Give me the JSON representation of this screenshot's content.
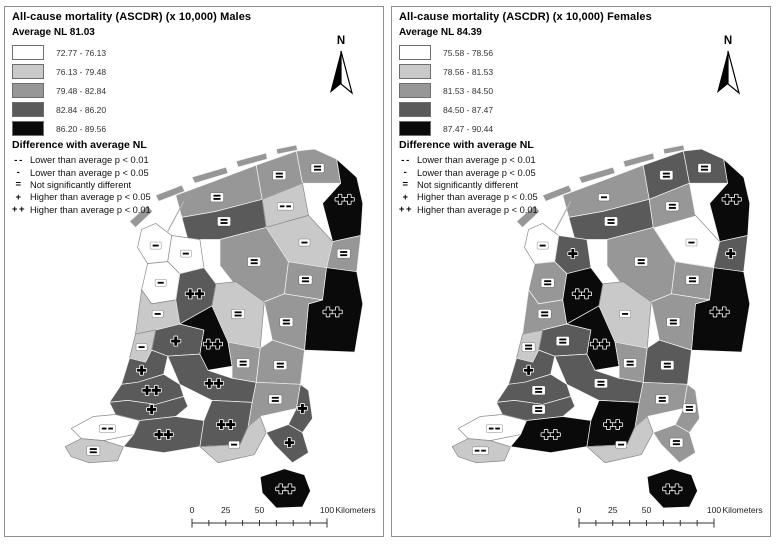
{
  "colors": {
    "c1": "#ffffff",
    "c2": "#c9c9c9",
    "c3": "#979797",
    "c4": "#5a5a5a",
    "c5": "#0a0a0a",
    "panel_border": "#8f8f8f",
    "border_light": "#8a8a8a",
    "border_dark": "#f4f4f4"
  },
  "shared": {
    "north_label": "N",
    "diff_legend": {
      "title": "Difference with average NL",
      "items": [
        {
          "symbol": "- -",
          "label": "Lower than average p < 0.01"
        },
        {
          "symbol": "-",
          "label": "Lower than average p < 0.05"
        },
        {
          "symbol": "=",
          "label": "Not significantly different"
        },
        {
          "symbol": "+",
          "label": "Higher than average p < 0.05"
        },
        {
          "symbol": "+ +",
          "label": "Higher than average p < 0.01"
        }
      ]
    },
    "scalebar": {
      "labels": [
        "0",
        "25",
        "50",
        "100"
      ],
      "unit": "Kilometers"
    }
  },
  "panels": [
    {
      "id": "males",
      "title": "All-cause mortality (ASCDR) (x 10,000) Males",
      "average_label": "Average NL 81.03",
      "classes": [
        {
          "color": "c1",
          "label": "72.77 - 76.13"
        },
        {
          "color": "c2",
          "label": "76.13 - 79.48"
        },
        {
          "color": "c3",
          "label": "79.48 - 82.84"
        },
        {
          "color": "c4",
          "label": "82.84 - 86.20"
        },
        {
          "color": "c5",
          "label": "86.20 - 89.56"
        }
      ],
      "regions": {
        "fr-nw": [
          "c3",
          "="
        ],
        "gr-w": [
          "c3",
          "="
        ],
        "gr-city": [
          "c3",
          "="
        ],
        "gr-e": [
          "c5",
          "++"
        ],
        "fr-mid": [
          "c4",
          "="
        ],
        "fr-se": [
          "c2",
          "--"
        ],
        "dr-n": [
          "c2",
          "-"
        ],
        "dr-se": [
          "c3",
          "="
        ],
        "ov-ne": [
          "c3",
          "="
        ],
        "ov-w": [
          "c3",
          "="
        ],
        "twente": [
          "c5",
          "++"
        ],
        "ov-salland": [
          "c3",
          "="
        ],
        "nh-kop": [
          "c1",
          "-"
        ],
        "nh-wf": [
          "c1",
          "-"
        ],
        "nh-kenn": [
          "c1",
          "-"
        ],
        "nh-zuid": [
          "c2",
          "-"
        ],
        "amsterdam": [
          "c4",
          "++"
        ],
        "flevoland": [
          "c2",
          "="
        ],
        "utrecht-w": [
          "c4",
          "+"
        ],
        "utrecht-c": [
          "c5",
          "++"
        ],
        "veluwe": [
          "c3",
          "="
        ],
        "arnhem": [
          "c3",
          "="
        ],
        "rivierenland": [
          "c4",
          "++"
        ],
        "zh-leiden": [
          "c2",
          "-"
        ],
        "zh-denhaag": [
          "c4",
          "+"
        ],
        "zh-rotterdam": [
          "c4",
          "++"
        ],
        "zh-dordrecht": [
          "c4",
          "+"
        ],
        "zeeland-n": [
          "c1",
          "--"
        ],
        "zeeland-s": [
          "c2",
          "="
        ],
        "brabant-w": [
          "c4",
          "++"
        ],
        "brabant-mid": [
          "c4",
          "++"
        ],
        "brabant-ne": [
          "c3",
          "="
        ],
        "brabant-se": [
          "c2",
          "-"
        ],
        "limburg-n": [
          "c4",
          "+"
        ],
        "limburg-mid": [
          "c4",
          "+"
        ],
        "limburg-s": [
          "c5",
          "++"
        ]
      }
    },
    {
      "id": "females",
      "title": "All-cause mortality (ASCDR) (x 10,000) Females",
      "average_label": "Average NL 84.39",
      "classes": [
        {
          "color": "c1",
          "label": "75.58 - 78.56"
        },
        {
          "color": "c2",
          "label": "78.56 - 81.53"
        },
        {
          "color": "c3",
          "label": "81.53 - 84.50"
        },
        {
          "color": "c4",
          "label": "84.50 - 87.47"
        },
        {
          "color": "c5",
          "label": "87.47 - 90.44"
        }
      ],
      "regions": {
        "fr-nw": [
          "c3",
          "-"
        ],
        "gr-w": [
          "c4",
          "="
        ],
        "gr-city": [
          "c4",
          "="
        ],
        "gr-e": [
          "c5",
          "++"
        ],
        "fr-mid": [
          "c4",
          "="
        ],
        "fr-se": [
          "c3",
          "="
        ],
        "dr-n": [
          "c1",
          "-"
        ],
        "dr-se": [
          "c3",
          "="
        ],
        "ov-ne": [
          "c4",
          "+"
        ],
        "ov-w": [
          "c3",
          "="
        ],
        "twente": [
          "c5",
          "++"
        ],
        "ov-salland": [
          "c3",
          "="
        ],
        "nh-kop": [
          "c1",
          "-"
        ],
        "nh-wf": [
          "c4",
          "+"
        ],
        "nh-kenn": [
          "c3",
          "="
        ],
        "nh-zuid": [
          "c3",
          "="
        ],
        "amsterdam": [
          "c5",
          "++"
        ],
        "flevoland": [
          "c2",
          "-"
        ],
        "utrecht-w": [
          "c4",
          "="
        ],
        "utrecht-c": [
          "c5",
          "++"
        ],
        "veluwe": [
          "c3",
          "="
        ],
        "arnhem": [
          "c4",
          "="
        ],
        "rivierenland": [
          "c4",
          "="
        ],
        "zh-leiden": [
          "c2",
          "="
        ],
        "zh-denhaag": [
          "c4",
          "+"
        ],
        "zh-rotterdam": [
          "c4",
          "="
        ],
        "zh-dordrecht": [
          "c4",
          "="
        ],
        "zeeland-n": [
          "c1",
          "--"
        ],
        "zeeland-s": [
          "c2",
          "--"
        ],
        "brabant-w": [
          "c5",
          "++"
        ],
        "brabant-mid": [
          "c5",
          "++"
        ],
        "brabant-ne": [
          "c3",
          "="
        ],
        "brabant-se": [
          "c2",
          "-"
        ],
        "limburg-n": [
          "c3",
          "="
        ],
        "limburg-mid": [
          "c3",
          "="
        ],
        "limburg-s": [
          "c5",
          "++"
        ]
      }
    }
  ]
}
